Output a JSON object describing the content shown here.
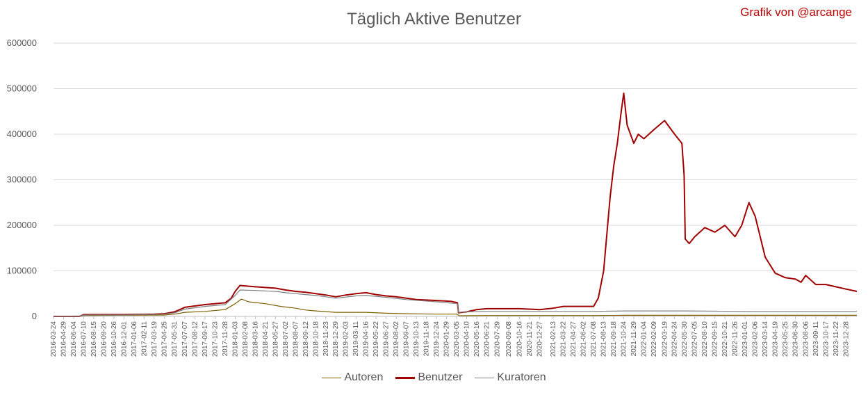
{
  "title": "Täglich Aktive Benutzer",
  "credit": "Grafik von @arcange",
  "colors": {
    "Autoren": "#7f6000",
    "Benutzer": "#a00000",
    "Kuratoren": "#7f7f7f",
    "grid": "#d9d9d9",
    "axis": "#bfbfbf"
  },
  "chart_data": {
    "type": "line",
    "ylim": [
      0,
      600000
    ],
    "yticks": [
      0,
      100000,
      200000,
      300000,
      400000,
      500000,
      600000
    ],
    "xrange": [
      "2016-03-24",
      "2024-02-05"
    ],
    "xtick_labels": [
      "2016-03-24",
      "2016-04-29",
      "2016-06-04",
      "2016-07-10",
      "2016-08-15",
      "2016-09-20",
      "2016-10-26",
      "2016-12-01",
      "2017-01-06",
      "2017-02-11",
      "2017-03-19",
      "2017-04-25",
      "2017-05-31",
      "2017-07-07",
      "2017-08-12",
      "2017-09-17",
      "2017-10-23",
      "2017-11-28",
      "2018-01-03",
      "2018-02-08",
      "2018-03-16",
      "2018-04-21",
      "2018-05-27",
      "2018-07-02",
      "2018-08-07",
      "2018-09-12",
      "2018-10-18",
      "2018-11-23",
      "2018-12-29",
      "2019-02-03",
      "2019-03-11",
      "2019-04-16",
      "2019-05-22",
      "2019-06-27",
      "2019-08-02",
      "2019-09-07",
      "2019-10-13",
      "2019-11-18",
      "2019-12-24",
      "2020-01-29",
      "2020-03-05",
      "2020-04-10",
      "2020-05-16",
      "2020-06-21",
      "2020-07-29",
      "2020-09-08",
      "2020-10-16",
      "2020-11-21",
      "2020-12-27",
      "2021-02-13",
      "2021-03-22",
      "2021-04-27",
      "2021-06-02",
      "2021-07-08",
      "2021-08-13",
      "2021-09-18",
      "2021-10-24",
      "2021-11-29",
      "2022-01-04",
      "2022-02-09",
      "2022-03-19",
      "2022-04-24",
      "2022-05-30",
      "2022-07-05",
      "2022-08-10",
      "2022-09-15",
      "2022-10-21",
      "2022-11-26",
      "2023-01-01",
      "2023-02-06",
      "2023-03-14",
      "2023-04-19",
      "2023-05-25",
      "2023-06-30",
      "2023-08-06",
      "2023-09-11",
      "2023-10-17",
      "2023-11-22",
      "2023-12-28"
    ],
    "legend_position": "bottom",
    "grid": true,
    "series": [
      {
        "name": "Autoren",
        "points": [
          [
            "2016-03-24",
            0
          ],
          [
            "2016-07-01",
            1000
          ],
          [
            "2016-07-10",
            2000
          ],
          [
            "2017-04-25",
            3000
          ],
          [
            "2017-05-31",
            5000
          ],
          [
            "2017-07-07",
            9000
          ],
          [
            "2017-09-17",
            11000
          ],
          [
            "2017-11-28",
            15000
          ],
          [
            "2018-01-03",
            28000
          ],
          [
            "2018-01-25",
            38000
          ],
          [
            "2018-02-20",
            32000
          ],
          [
            "2018-04-21",
            28000
          ],
          [
            "2018-06-15",
            22000
          ],
          [
            "2018-08-07",
            18000
          ],
          [
            "2018-09-12",
            14000
          ],
          [
            "2018-10-18",
            12000
          ],
          [
            "2018-12-29",
            9000
          ],
          [
            "2019-04-16",
            9000
          ],
          [
            "2019-06-27",
            7000
          ],
          [
            "2019-09-07",
            6000
          ],
          [
            "2019-12-24",
            5000
          ],
          [
            "2020-03-05",
            5000
          ],
          [
            "2020-03-15",
            1500
          ],
          [
            "2020-06-21",
            2000
          ],
          [
            "2021-07-08",
            2000
          ],
          [
            "2021-10-24",
            2500
          ],
          [
            "2022-05-30",
            2500
          ],
          [
            "2024-02-05",
            2500
          ]
        ]
      },
      {
        "name": "Benutzer",
        "points": [
          [
            "2016-03-24",
            0
          ],
          [
            "2016-06-25",
            0
          ],
          [
            "2016-07-10",
            4000
          ],
          [
            "2016-09-20",
            4000
          ],
          [
            "2016-12-01",
            4000
          ],
          [
            "2017-03-19",
            5000
          ],
          [
            "2017-04-25",
            6000
          ],
          [
            "2017-05-31",
            10000
          ],
          [
            "2017-07-07",
            20000
          ],
          [
            "2017-09-17",
            26000
          ],
          [
            "2017-11-28",
            30000
          ],
          [
            "2017-12-20",
            40000
          ],
          [
            "2018-01-03",
            55000
          ],
          [
            "2018-01-20",
            68000
          ],
          [
            "2018-03-16",
            65000
          ],
          [
            "2018-05-27",
            62000
          ],
          [
            "2018-07-02",
            58000
          ],
          [
            "2018-08-07",
            55000
          ],
          [
            "2018-09-12",
            53000
          ],
          [
            "2018-10-18",
            50000
          ],
          [
            "2018-11-23",
            47000
          ],
          [
            "2018-12-29",
            43000
          ],
          [
            "2019-02-03",
            47000
          ],
          [
            "2019-03-11",
            50000
          ],
          [
            "2019-04-16",
            52000
          ],
          [
            "2019-05-22",
            48000
          ],
          [
            "2019-06-27",
            45000
          ],
          [
            "2019-08-02",
            43000
          ],
          [
            "2019-09-07",
            40000
          ],
          [
            "2019-10-13",
            37000
          ],
          [
            "2019-12-24",
            35000
          ],
          [
            "2020-02-15",
            33000
          ],
          [
            "2020-03-08",
            30000
          ],
          [
            "2020-03-12",
            8000
          ],
          [
            "2020-04-10",
            10000
          ],
          [
            "2020-05-16",
            15000
          ],
          [
            "2020-06-21",
            17000
          ],
          [
            "2020-10-16",
            17000
          ],
          [
            "2020-12-27",
            15000
          ],
          [
            "2021-02-13",
            18000
          ],
          [
            "2021-03-22",
            22000
          ],
          [
            "2021-05-15",
            22000
          ],
          [
            "2021-07-08",
            22000
          ],
          [
            "2021-07-25",
            40000
          ],
          [
            "2021-08-13",
            100000
          ],
          [
            "2021-09-05",
            260000
          ],
          [
            "2021-09-18",
            330000
          ],
          [
            "2021-10-01",
            380000
          ],
          [
            "2021-10-15",
            450000
          ],
          [
            "2021-10-24",
            490000
          ],
          [
            "2021-11-05",
            420000
          ],
          [
            "2021-11-29",
            380000
          ],
          [
            "2021-12-15",
            400000
          ],
          [
            "2022-01-04",
            390000
          ],
          [
            "2022-02-09",
            410000
          ],
          [
            "2022-03-19",
            430000
          ],
          [
            "2022-04-24",
            400000
          ],
          [
            "2022-05-20",
            380000
          ],
          [
            "2022-05-28",
            310000
          ],
          [
            "2022-06-01",
            170000
          ],
          [
            "2022-06-15",
            160000
          ],
          [
            "2022-07-05",
            175000
          ],
          [
            "2022-08-10",
            195000
          ],
          [
            "2022-09-15",
            185000
          ],
          [
            "2022-10-21",
            200000
          ],
          [
            "2022-11-26",
            175000
          ],
          [
            "2022-12-20",
            200000
          ],
          [
            "2023-01-15",
            250000
          ],
          [
            "2023-02-06",
            220000
          ],
          [
            "2023-03-14",
            130000
          ],
          [
            "2023-04-19",
            95000
          ],
          [
            "2023-05-25",
            85000
          ],
          [
            "2023-06-30",
            82000
          ],
          [
            "2023-07-20",
            75000
          ],
          [
            "2023-08-06",
            90000
          ],
          [
            "2023-09-11",
            70000
          ],
          [
            "2023-10-17",
            70000
          ],
          [
            "2023-11-22",
            65000
          ],
          [
            "2023-12-28",
            60000
          ],
          [
            "2024-02-05",
            55000
          ]
        ]
      },
      {
        "name": "Kuratoren",
        "points": [
          [
            "2016-03-24",
            0
          ],
          [
            "2016-06-25",
            0
          ],
          [
            "2016-07-10",
            3000
          ],
          [
            "2016-12-01",
            3000
          ],
          [
            "2017-04-25",
            5000
          ],
          [
            "2017-05-31",
            8000
          ],
          [
            "2017-07-07",
            16000
          ],
          [
            "2017-09-17",
            22000
          ],
          [
            "2017-11-28",
            26000
          ],
          [
            "2018-01-03",
            46000
          ],
          [
            "2018-01-20",
            58000
          ],
          [
            "2018-03-16",
            57000
          ],
          [
            "2018-05-27",
            55000
          ],
          [
            "2018-07-02",
            52000
          ],
          [
            "2018-08-07",
            50000
          ],
          [
            "2018-09-12",
            48000
          ],
          [
            "2018-10-18",
            46000
          ],
          [
            "2018-11-23",
            43000
          ],
          [
            "2018-12-29",
            40000
          ],
          [
            "2019-03-11",
            45000
          ],
          [
            "2019-04-16",
            46000
          ],
          [
            "2019-06-27",
            42000
          ],
          [
            "2019-09-07",
            37000
          ],
          [
            "2019-12-24",
            32000
          ],
          [
            "2020-03-08",
            28000
          ],
          [
            "2020-03-12",
            9000
          ],
          [
            "2020-04-10",
            10000
          ],
          [
            "2020-06-21",
            11000
          ],
          [
            "2021-03-22",
            11000
          ],
          [
            "2021-07-08",
            11000
          ],
          [
            "2021-10-24",
            12000
          ],
          [
            "2022-03-19",
            12000
          ],
          [
            "2022-06-01",
            12000
          ],
          [
            "2023-01-15",
            11000
          ],
          [
            "2024-02-05",
            11000
          ]
        ]
      }
    ]
  }
}
